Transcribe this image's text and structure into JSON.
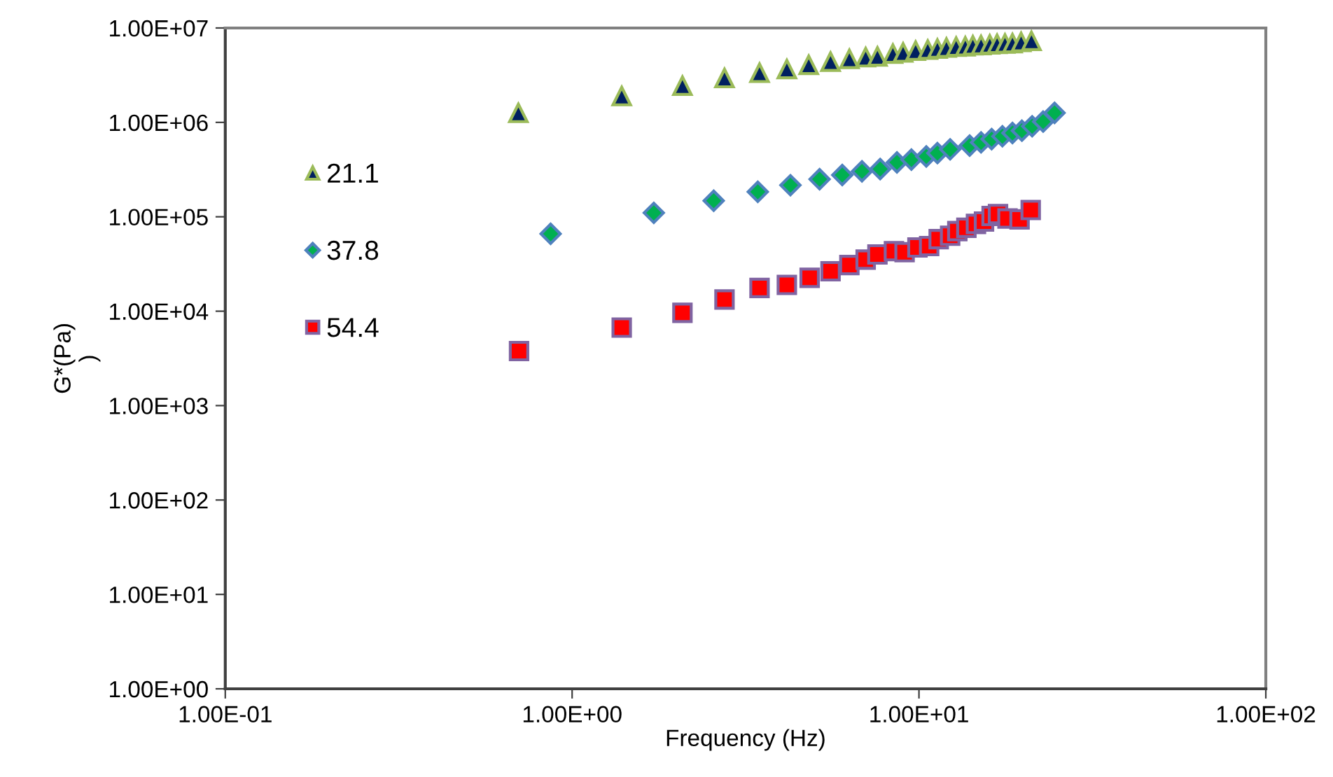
{
  "chart_data": {
    "type": "scatter",
    "xlabel": "Frequency (Hz)",
    "ylabel": "G*(Pa)\n)",
    "log": "xy",
    "grid": false,
    "legend": "left",
    "xlim": [
      0.1,
      100
    ],
    "xticks": [
      {
        "value": 0.1,
        "label": "1.00E-01"
      },
      {
        "value": 1,
        "label": "1.00E+00"
      },
      {
        "value": 10,
        "label": "1.00E+01"
      },
      {
        "value": 100,
        "label": "1.00E+02"
      }
    ],
    "ylim": [
      1,
      10000000
    ],
    "yticks": [
      {
        "value": 1,
        "label": "1.00E+00"
      },
      {
        "value": 10,
        "label": "1.00E+01"
      },
      {
        "value": 100,
        "label": "1.00E+02"
      },
      {
        "value": 1000,
        "label": "1.00E+03"
      },
      {
        "value": 10000,
        "label": "1.00E+04"
      },
      {
        "value": 100000,
        "label": "1.00E+05"
      },
      {
        "value": 1000000,
        "label": "1.00E+06"
      },
      {
        "value": 10000000,
        "label": "1.00E+07"
      }
    ],
    "series": [
      {
        "name": "21.1",
        "color": "#002060",
        "marker": "triangle",
        "x": [
          0.7,
          1.39,
          2.08,
          2.75,
          3.47,
          4.16,
          4.81,
          5.56,
          6.3,
          7.02,
          7.59,
          8.41,
          9.0,
          9.78,
          10.6,
          11.3,
          12.0,
          12.8,
          13.6,
          14.3,
          15.1,
          16.0,
          16.8,
          17.7,
          18.6,
          19.7,
          21.1
        ],
        "values": [
          1260000,
          1900000,
          2450000,
          2950000,
          3350000,
          3670000,
          4070000,
          4400000,
          4700000,
          4900000,
          5000000,
          5350000,
          5500000,
          5750000,
          5900000,
          6050000,
          6200000,
          6350000,
          6400000,
          6550000,
          6600000,
          6700000,
          6800000,
          6850000,
          6900000,
          7100000,
          7300000
        ]
      },
      {
        "name": "37.8",
        "color": "#00b050",
        "marker": "diamond",
        "x": [
          0.867,
          1.72,
          2.56,
          3.43,
          4.26,
          5.17,
          6.01,
          6.85,
          7.73,
          8.64,
          9.51,
          10.5,
          11.3,
          12.3,
          14.0,
          15.1,
          16.2,
          17.4,
          18.6,
          19.8,
          21.2,
          22.8,
          24.6
        ],
        "values": [
          66000,
          110000,
          148000,
          184000,
          216000,
          250000,
          277000,
          303000,
          320000,
          377000,
          403000,
          436000,
          473000,
          518000,
          567000,
          614000,
          665000,
          713000,
          771000,
          817000,
          910000,
          1020000,
          1260000
        ]
      },
      {
        "name": "54.4",
        "color": "#ff0000",
        "marker": "square",
        "x": [
          0.703,
          1.39,
          2.08,
          2.75,
          3.47,
          4.16,
          4.84,
          5.56,
          6.3,
          7.02,
          7.59,
          8.47,
          9.09,
          9.9,
          10.7,
          11.4,
          12.3,
          12.9,
          13.7,
          14.6,
          15.4,
          16.2,
          16.9,
          18.0,
          19.5,
          21.0
        ],
        "values": [
          3780,
          6700,
          9600,
          13300,
          17600,
          19000,
          22600,
          26500,
          30800,
          35200,
          39900,
          43300,
          42200,
          47300,
          49000,
          58000,
          63000,
          70600,
          76400,
          84000,
          89000,
          102000,
          107000,
          96000,
          94000,
          118000
        ]
      }
    ]
  }
}
